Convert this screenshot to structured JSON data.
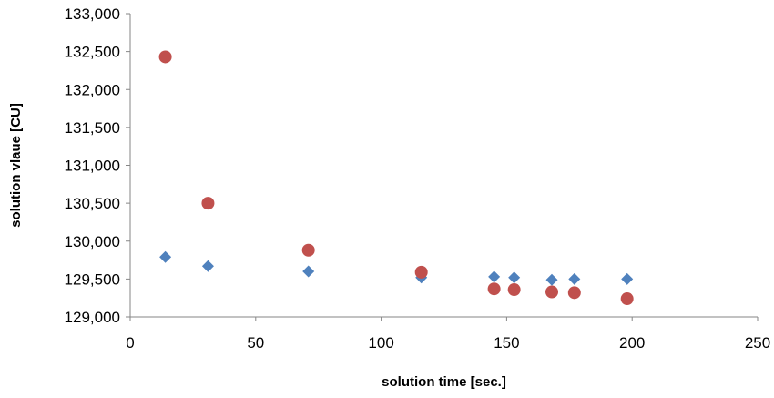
{
  "chart_data": {
    "type": "scatter",
    "title": "",
    "xlabel": "solution time [sec.]",
    "ylabel": "solution vlaue [CU]",
    "xlim": [
      0,
      250
    ],
    "ylim": [
      129000,
      133000
    ],
    "x_ticks": [
      0,
      50,
      100,
      150,
      200,
      250
    ],
    "x_tick_labels": [
      "0",
      "50",
      "100",
      "150",
      "200",
      "250"
    ],
    "y_ticks": [
      129000,
      129500,
      130000,
      130500,
      131000,
      131500,
      132000,
      132500,
      133000
    ],
    "y_tick_labels": [
      "129,000",
      "129,500",
      "130,000",
      "130,500",
      "131,000",
      "131,500",
      "132,000",
      "132,500",
      "133,000"
    ],
    "grid": false,
    "legend": "none",
    "series": [
      {
        "marker": "diamond",
        "color": "#4f81bd",
        "points": [
          {
            "x": 14,
            "y": 129790
          },
          {
            "x": 31,
            "y": 129670
          },
          {
            "x": 71,
            "y": 129600
          },
          {
            "x": 116,
            "y": 129520
          },
          {
            "x": 145,
            "y": 129530
          },
          {
            "x": 153,
            "y": 129520
          },
          {
            "x": 168,
            "y": 129490
          },
          {
            "x": 177,
            "y": 129500
          },
          {
            "x": 198,
            "y": 129500
          }
        ]
      },
      {
        "marker": "circle",
        "color": "#c0504d",
        "points": [
          {
            "x": 14,
            "y": 132430
          },
          {
            "x": 31,
            "y": 130500
          },
          {
            "x": 71,
            "y": 129880
          },
          {
            "x": 116,
            "y": 129590
          },
          {
            "x": 145,
            "y": 129370
          },
          {
            "x": 153,
            "y": 129360
          },
          {
            "x": 168,
            "y": 129330
          },
          {
            "x": 177,
            "y": 129320
          },
          {
            "x": 198,
            "y": 129240
          }
        ]
      }
    ]
  }
}
